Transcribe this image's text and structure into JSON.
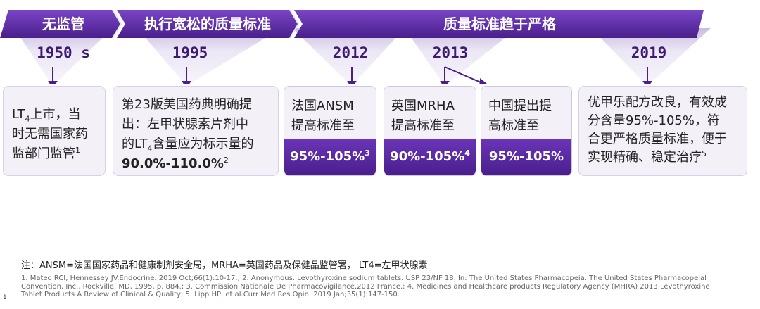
{
  "colors": {
    "band_dark": "#4a1f8c",
    "band_mid": "#6a35b8",
    "band_light": "#e9e3f3",
    "box_bg": "#f3f0f8"
  },
  "phases": [
    "无监管",
    "执行宽松的质量标准",
    "质量标准趋于严格"
  ],
  "years": [
    "1950 s",
    "1995",
    "2012",
    "2013",
    "2019"
  ],
  "box1": {
    "line1_a": "LT",
    "line1_sub": "4",
    "line1_b": "上市，当",
    "line2": "时无需国家药",
    "line3": "监部门监管",
    "sup": "1"
  },
  "box2": {
    "line1": "第23版美国药典明确提",
    "line2": "出：左甲状腺素片剂中",
    "line3_a": "的LT",
    "line3_sub": "4",
    "line3_b": "含量应为标示量的",
    "value": "90.0%-110.0%",
    "sup": "2"
  },
  "box3": {
    "line1": "法国ANSM",
    "line2": "提高标准至",
    "value": "95%-105%",
    "sup": "3"
  },
  "box4": {
    "line1": "英国MRHA",
    "line2": "提高标准至",
    "value": "90%-105%",
    "sup": "4"
  },
  "box5": {
    "line1": "中国提出提",
    "line2": "高标准至",
    "value": "95%-105%"
  },
  "box6": {
    "line1": "优甲乐配方改良，有效成",
    "line2": "分含量95%-105%，符",
    "line3": "合更严格质量标准，便于",
    "line4": "实现精确、稳定治疗",
    "sup": "5"
  },
  "note": "注：ANSM=法国国家药品和健康制剂安全局，MRHA=英国药品及保健品监管署， LT4=左甲状腺素",
  "references": "1. Mateo RCI, Hennessey JV.Endocrine. 2019 Oct;66(1):10-17.; 2. Anonymous. Levothyroxine sodium tablets. USP 23/NF 18. In: The United States Pharmacopeia. The United States Pharmacopeial Convention, Inc., Rockville, MD, 1995, p. 884.; 3. Commission Nationale De Pharmacovigilance.2012 France.; 4. Medicines and Healthcare products Regulatory Agency (MHRA) 2013 Levothyroxine Tablet Products A Review of Clinical & Quality; 5. Lipp HP, et al.Curr Med Res Opin. 2019 Jan;35(1):147-150.",
  "page_number": "1"
}
